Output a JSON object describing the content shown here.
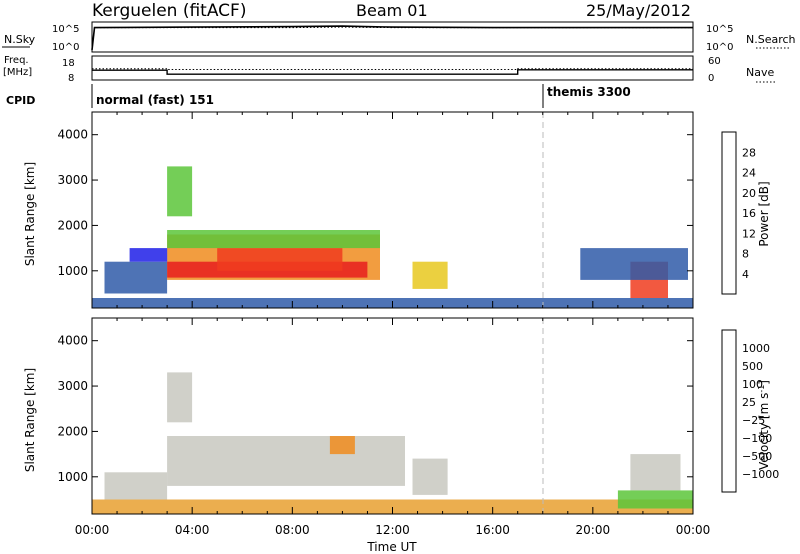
{
  "header": {
    "station": "Kerguelen (fitACF)",
    "beam": "Beam 01",
    "date": "25/May/2012"
  },
  "noise_panel": {
    "left_label": "N.Sky",
    "left_ticks": [
      "10^5",
      "10^0"
    ],
    "right_label": "N.Search",
    "right_ticks": [
      "10^5",
      "10^0"
    ]
  },
  "freq_panel": {
    "left_label_line1": "Freq.",
    "left_label_line2": "[MHz]",
    "left_ticks": [
      "18",
      "8"
    ],
    "right_label": "Nave",
    "right_ticks": [
      "60",
      "0"
    ]
  },
  "cpid_panel": {
    "label": "CPID",
    "segments": [
      {
        "name": "normal (fast) 151",
        "start_h": 0
      },
      {
        "name": "themis 3300",
        "start_h": 18
      }
    ]
  },
  "power_panel": {
    "ylabel": "Slant Range [km]",
    "yticks": [
      "1000",
      "2000",
      "3000",
      "4000"
    ],
    "colorbar_label": "Power [dB]",
    "colorbar_ticks": [
      "4",
      "8",
      "12",
      "16",
      "20",
      "24",
      "28"
    ],
    "colors": [
      "#1e1ee8",
      "#2f5aa8",
      "#3c8c5a",
      "#5cc63a",
      "#e8c81e",
      "#f08c1e",
      "#f03c1e",
      "#e81e1e"
    ]
  },
  "velocity_panel": {
    "ylabel": "Slant Range [km]",
    "yticks": [
      "1000",
      "2000",
      "3000",
      "4000"
    ],
    "colorbar_label": "Velocity  [m s",
    "colorbar_label_sup": "-1",
    "colorbar_label_end": "]",
    "colorbar_ticks": [
      "1000",
      "500",
      "100",
      "25",
      "−25",
      "−100",
      "−500",
      "−1000"
    ],
    "colors": [
      "#2030c8",
      "#2f5aa8",
      "#3c8c5a",
      "#5cc63a",
      "#c8c8c0",
      "#e8a030",
      "#f08c1e",
      "#f03c1e",
      "#e81e1e"
    ]
  },
  "xaxis": {
    "xlabel": "Time UT",
    "ticks": [
      "00:00",
      "04:00",
      "08:00",
      "12:00",
      "16:00",
      "20:00",
      "00:00"
    ]
  },
  "chart_data": [
    {
      "type": "line",
      "name": "noise",
      "x_hours": [
        0,
        0.1,
        4,
        8,
        10,
        12,
        16,
        20,
        24
      ],
      "sky_log10": [
        0,
        4.3,
        4.4,
        4.5,
        4.6,
        4.4,
        4.3,
        4.3,
        4.3
      ],
      "search_log10": [
        0,
        4.3,
        4.3,
        4.3,
        4.4,
        4.3,
        4.3,
        4.3,
        4.3
      ]
    },
    {
      "type": "line",
      "name": "frequency_nave",
      "freq_steps": [
        {
          "from_h": 0,
          "to_h": 3,
          "mhz": 12
        },
        {
          "from_h": 3,
          "to_h": 17,
          "mhz": 10.2
        },
        {
          "from_h": 17,
          "to_h": 24,
          "mhz": 12.2
        }
      ],
      "nave_steps": [
        {
          "from_h": 0,
          "to_h": 3,
          "value": 28
        },
        {
          "from_h": 3,
          "to_h": 17,
          "value": 26
        },
        {
          "from_h": 17,
          "to_h": 24,
          "value": 28
        }
      ]
    },
    {
      "type": "heatmap",
      "name": "power",
      "x_range_h": [
        0,
        24
      ],
      "y_range_km": [
        180,
        4500
      ],
      "value_range_db": [
        0,
        30
      ],
      "regions": [
        {
          "t0": 3.0,
          "t1": 11.5,
          "r0": 800,
          "r1": 1800,
          "level": 5
        },
        {
          "t0": 3.0,
          "t1": 11.0,
          "r0": 850,
          "r1": 1200,
          "level": 7
        },
        {
          "t0": 5.0,
          "t1": 10.0,
          "r0": 1000,
          "r1": 1500,
          "level": 6
        },
        {
          "t0": 3.0,
          "t1": 11.5,
          "r0": 1500,
          "r1": 1900,
          "level": 3
        },
        {
          "t0": 3.0,
          "t1": 4.0,
          "r0": 2200,
          "r1": 3300,
          "level": 3
        },
        {
          "t0": 12.8,
          "t1": 14.2,
          "r0": 600,
          "r1": 1200,
          "level": 4
        },
        {
          "t0": 21.5,
          "t1": 23.0,
          "r0": 400,
          "r1": 1200,
          "level": 6
        },
        {
          "t0": 19.5,
          "t1": 23.8,
          "r0": 800,
          "r1": 1500,
          "level": 1
        },
        {
          "t0": 0,
          "t1": 24,
          "r0": 180,
          "r1": 400,
          "level": 1
        },
        {
          "t0": 0.5,
          "t1": 3.0,
          "r0": 500,
          "r1": 1200,
          "level": 1
        },
        {
          "t0": 1.5,
          "t1": 3.0,
          "r0": 1200,
          "r1": 1500,
          "level": 0
        }
      ]
    },
    {
      "type": "heatmap",
      "name": "velocity",
      "x_range_h": [
        0,
        24
      ],
      "y_range_km": [
        180,
        4500
      ],
      "value_range_ms": [
        -1000,
        1000
      ],
      "regions": [
        {
          "t0": 3.0,
          "t1": 12.5,
          "r0": 800,
          "r1": 1900,
          "level": 4
        },
        {
          "t0": 12.8,
          "t1": 14.2,
          "r0": 600,
          "r1": 1400,
          "level": 4
        },
        {
          "t0": 3.0,
          "t1": 4.0,
          "r0": 2200,
          "r1": 3300,
          "level": 4
        },
        {
          "t0": 0,
          "t1": 24,
          "r0": 180,
          "r1": 500,
          "level": 5
        },
        {
          "t0": 0.5,
          "t1": 3.0,
          "r0": 500,
          "r1": 1100,
          "level": 4
        },
        {
          "t0": 21.5,
          "t1": 23.5,
          "r0": 700,
          "r1": 1500,
          "level": 4
        },
        {
          "t0": 21.0,
          "t1": 24.0,
          "r0": 300,
          "r1": 700,
          "level": 3
        },
        {
          "t0": 9.5,
          "t1": 10.5,
          "r0": 1500,
          "r1": 1900,
          "level": 6
        }
      ]
    }
  ]
}
